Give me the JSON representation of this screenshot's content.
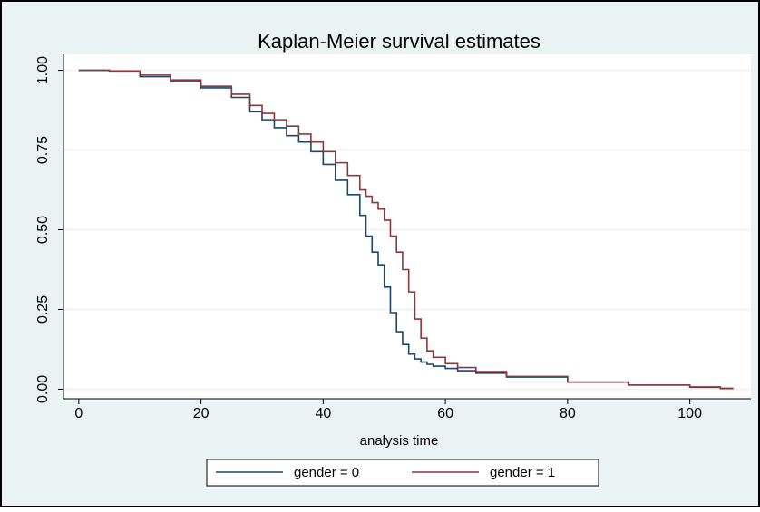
{
  "chart_data": {
    "type": "step",
    "title": "Kaplan-Meier survival estimates",
    "x_label": "analysis time",
    "x": [
      0,
      5,
      10,
      15,
      20,
      25,
      28,
      30,
      32,
      34,
      36,
      38,
      40,
      42,
      44,
      46,
      47,
      48,
      49,
      50,
      51,
      52,
      53,
      54,
      55,
      56,
      57,
      58,
      60,
      62,
      65,
      70,
      80,
      90,
      100,
      105,
      107
    ],
    "series": [
      {
        "name": "gender = 0",
        "color": "#1a476f",
        "values": [
          1,
          0.995,
          0.98,
          0.965,
          0.945,
          0.915,
          0.87,
          0.845,
          0.82,
          0.795,
          0.775,
          0.745,
          0.705,
          0.655,
          0.61,
          0.545,
          0.48,
          0.43,
          0.39,
          0.32,
          0.24,
          0.18,
          0.14,
          0.11,
          0.095,
          0.085,
          0.078,
          0.072,
          0.065,
          0.058,
          0.05,
          0.038,
          0.022,
          0.013,
          0.006,
          0.002,
          0
        ]
      },
      {
        "name": "gender = 1",
        "color": "#90353b",
        "values": [
          1,
          0.998,
          0.985,
          0.97,
          0.95,
          0.925,
          0.89,
          0.865,
          0.845,
          0.825,
          0.8,
          0.775,
          0.745,
          0.71,
          0.67,
          0.625,
          0.605,
          0.585,
          0.565,
          0.53,
          0.48,
          0.43,
          0.375,
          0.305,
          0.22,
          0.16,
          0.12,
          0.1,
          0.08,
          0.068,
          0.055,
          0.04,
          0.022,
          0.013,
          0.007,
          0.003,
          0
        ]
      }
    ],
    "xlim": [
      -2.5,
      110
    ],
    "xticks": [
      0,
      20,
      40,
      60,
      80,
      100
    ],
    "ylim": [
      -0.03,
      1.05
    ],
    "yticks": [
      {
        "value": 0,
        "label": "0.00"
      },
      {
        "value": 0.25,
        "label": "0.25"
      },
      {
        "value": 0.5,
        "label": "0.50"
      },
      {
        "value": 0.75,
        "label": "0.75"
      },
      {
        "value": 1,
        "label": "1.00"
      }
    ],
    "grid": true
  }
}
